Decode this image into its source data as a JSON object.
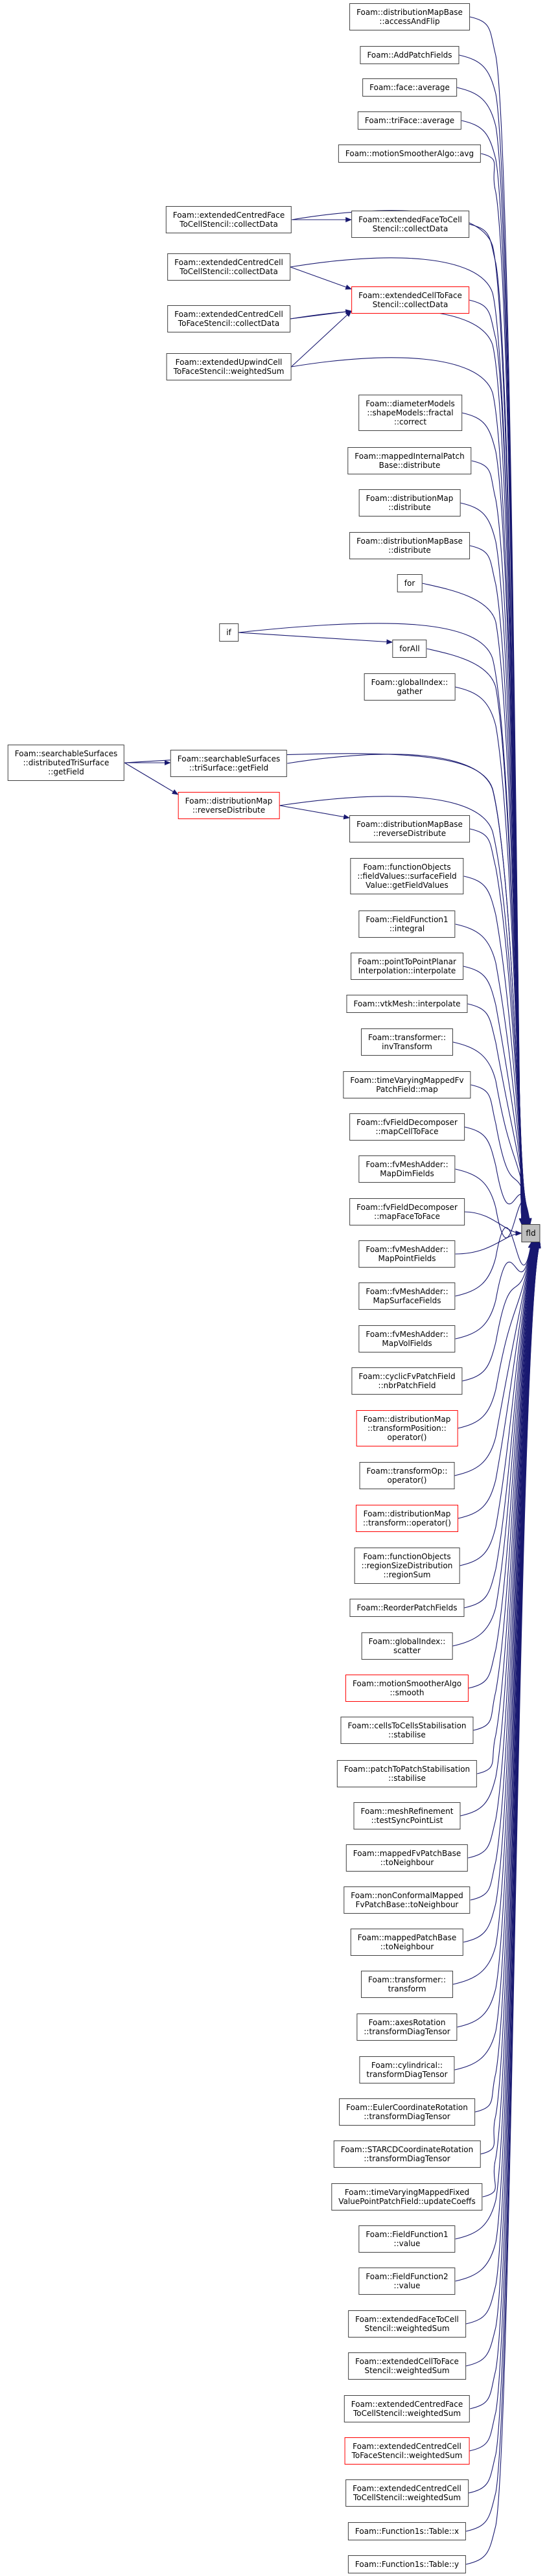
{
  "colors": {
    "edge": "#191970",
    "node_border": "#404040",
    "highlight_border": "#ff0000",
    "root_fill": "#bfbfbf"
  },
  "root": "fld",
  "nodes": [
    {
      "id": "accessAndFlip",
      "lines": [
        "Foam::distributionMapBase",
        "::accessAndFlip"
      ]
    },
    {
      "id": "AddPatchFields",
      "lines": [
        "Foam::AddPatchFields"
      ]
    },
    {
      "id": "faceAvg",
      "lines": [
        "Foam::face::average"
      ]
    },
    {
      "id": "triFaceAvg",
      "lines": [
        "Foam::triFace::average"
      ]
    },
    {
      "id": "avg",
      "lines": [
        "Foam::motionSmootherAlgo::avg"
      ]
    },
    {
      "id": "cFaceToCellCol",
      "lines": [
        "Foam::extendedCentredFace",
        "ToCellStencil::collectData"
      ]
    },
    {
      "id": "eFaceToCellCol",
      "lines": [
        "Foam::extendedFaceToCell",
        "Stencil::collectData"
      ]
    },
    {
      "id": "cCellToCellCol",
      "lines": [
        "Foam::extendedCentredCell",
        "ToCellStencil::collectData"
      ]
    },
    {
      "id": "eCellToFaceCol",
      "lines": [
        "Foam::extendedCellToFace",
        "Stencil::collectData"
      ],
      "highlight": true
    },
    {
      "id": "cCellToFaceCol",
      "lines": [
        "Foam::extendedCentredCell",
        "ToFaceStencil::collectData"
      ]
    },
    {
      "id": "upwind",
      "lines": [
        "Foam::extendedUpwindCell",
        "ToFaceStencil::weightedSum"
      ]
    },
    {
      "id": "diameter",
      "lines": [
        "Foam::diameterModels",
        "::shapeModels::fractal",
        "::correct"
      ]
    },
    {
      "id": "mappedInternal",
      "lines": [
        "Foam::mappedInternalPatch",
        "Base::distribute"
      ]
    },
    {
      "id": "dmDistribute",
      "lines": [
        "Foam::distributionMap",
        "::distribute"
      ]
    },
    {
      "id": "dmbDistribute",
      "lines": [
        "Foam::distributionMapBase",
        "::distribute"
      ]
    },
    {
      "id": "for",
      "lines": [
        "for"
      ]
    },
    {
      "id": "if",
      "lines": [
        "if"
      ]
    },
    {
      "id": "forAll",
      "lines": [
        "forAll"
      ]
    },
    {
      "id": "gather",
      "lines": [
        "Foam::globalIndex::",
        "gather"
      ]
    },
    {
      "id": "distTriGetField",
      "lines": [
        "Foam::searchableSurfaces",
        "::distributedTriSurface",
        "::getField"
      ]
    },
    {
      "id": "triGetField",
      "lines": [
        "Foam::searchableSurfaces",
        "::triSurface::getField"
      ]
    },
    {
      "id": "dmReverse",
      "lines": [
        "Foam::distributionMap",
        "::reverseDistribute"
      ],
      "highlight": true
    },
    {
      "id": "dmbReverse",
      "lines": [
        "Foam::distributionMapBase",
        "::reverseDistribute"
      ]
    },
    {
      "id": "surfaceFieldValue",
      "lines": [
        "Foam::functionObjects",
        "::fieldValues::surfaceField",
        "Value::getFieldValues"
      ]
    },
    {
      "id": "integral",
      "lines": [
        "Foam::FieldFunction1",
        "::integral"
      ]
    },
    {
      "id": "pointToPoint",
      "lines": [
        "Foam::pointToPointPlanar",
        "Interpolation::interpolate"
      ]
    },
    {
      "id": "vtkMesh",
      "lines": [
        "Foam::vtkMesh::interpolate"
      ]
    },
    {
      "id": "invTransform",
      "lines": [
        "Foam::transformer::",
        "invTransform"
      ]
    },
    {
      "id": "timeVaryingFv",
      "lines": [
        "Foam::timeVaryingMappedFv",
        "PatchField::map"
      ]
    },
    {
      "id": "mapCellToFace",
      "lines": [
        "Foam::fvFieldDecomposer",
        "::mapCellToFace"
      ]
    },
    {
      "id": "MapDim",
      "lines": [
        "Foam::fvMeshAdder::",
        "MapDimFields"
      ]
    },
    {
      "id": "mapFaceToFace",
      "lines": [
        "Foam::fvFieldDecomposer",
        "::mapFaceToFace"
      ]
    },
    {
      "id": "fld",
      "lines": [
        "fld"
      ],
      "root": true
    },
    {
      "id": "MapPoint",
      "lines": [
        "Foam::fvMeshAdder::",
        "MapPointFields"
      ]
    },
    {
      "id": "MapSurface",
      "lines": [
        "Foam::fvMeshAdder::",
        "MapSurfaceFields"
      ]
    },
    {
      "id": "MapVol",
      "lines": [
        "Foam::fvMeshAdder::",
        "MapVolFields"
      ]
    },
    {
      "id": "nbrPatch",
      "lines": [
        "Foam::cyclicFvPatchField",
        "::nbrPatchField"
      ]
    },
    {
      "id": "transformPosition",
      "lines": [
        "Foam::distributionMap",
        "::transformPosition::",
        "operator()"
      ],
      "highlight": true
    },
    {
      "id": "transformOp",
      "lines": [
        "Foam::transformOp::",
        "operator()"
      ]
    },
    {
      "id": "transformOperator",
      "lines": [
        "Foam::distributionMap",
        "::transform::operator()"
      ],
      "highlight": true
    },
    {
      "id": "regionSum",
      "lines": [
        "Foam::functionObjects",
        "::regionSizeDistribution",
        "::regionSum"
      ]
    },
    {
      "id": "Reorder",
      "lines": [
        "Foam::ReorderPatchFields"
      ]
    },
    {
      "id": "scatter",
      "lines": [
        "Foam::globalIndex::",
        "scatter"
      ]
    },
    {
      "id": "smooth",
      "lines": [
        "Foam::motionSmootherAlgo",
        "::smooth"
      ],
      "highlight": true
    },
    {
      "id": "cellsToCells",
      "lines": [
        "Foam::cellsToCellsStabilisation",
        "::stabilise"
      ]
    },
    {
      "id": "patchToPatch",
      "lines": [
        "Foam::patchToPatchStabilisation",
        "::stabilise"
      ]
    },
    {
      "id": "testSync",
      "lines": [
        "Foam::meshRefinement",
        "::testSyncPointList"
      ]
    },
    {
      "id": "mappedFv",
      "lines": [
        "Foam::mappedFvPatchBase",
        "::toNeighbour"
      ]
    },
    {
      "id": "nonConformal",
      "lines": [
        "Foam::nonConformalMapped",
        "FvPatchBase::toNeighbour"
      ]
    },
    {
      "id": "mappedPatch",
      "lines": [
        "Foam::mappedPatchBase",
        "::toNeighbour"
      ]
    },
    {
      "id": "transformerTransform",
      "lines": [
        "Foam::transformer::",
        "transform"
      ]
    },
    {
      "id": "axesRotation",
      "lines": [
        "Foam::axesRotation",
        "::transformDiagTensor"
      ]
    },
    {
      "id": "cylindrical",
      "lines": [
        "Foam::cylindrical::",
        "transformDiagTensor"
      ]
    },
    {
      "id": "Euler",
      "lines": [
        "Foam::EulerCoordinateRotation",
        "::transformDiagTensor"
      ]
    },
    {
      "id": "STARCD",
      "lines": [
        "Foam::STARCDCoordinateRotation",
        "::transformDiagTensor"
      ]
    },
    {
      "id": "timeVaryingFixed",
      "lines": [
        "Foam::timeVaryingMappedFixed",
        "ValuePointPatchField::updateCoeffs"
      ]
    },
    {
      "id": "FF1value",
      "lines": [
        "Foam::FieldFunction1",
        "::value"
      ]
    },
    {
      "id": "FF2value",
      "lines": [
        "Foam::FieldFunction2",
        "::value"
      ]
    },
    {
      "id": "FaceToCellWs",
      "lines": [
        "Foam::extendedFaceToCell",
        "Stencil::weightedSum"
      ]
    },
    {
      "id": "CellToFaceWs",
      "lines": [
        "Foam::extendedCellToFace",
        "Stencil::weightedSum"
      ]
    },
    {
      "id": "CentredFaceWs",
      "lines": [
        "Foam::extendedCentredFace",
        "ToCellStencil::weightedSum"
      ]
    },
    {
      "id": "CentredCellToFaceWs",
      "lines": [
        "Foam::extendedCentredCell",
        "ToFaceStencil::weightedSum"
      ],
      "highlight": true
    },
    {
      "id": "CentredCellToCellWs",
      "lines": [
        "Foam::extendedCentredCell",
        "ToCellStencil::weightedSum"
      ]
    },
    {
      "id": "TableX",
      "lines": [
        "Foam::Function1s::Table::x"
      ]
    },
    {
      "id": "TableY",
      "lines": [
        "Foam::Function1s::Table::y"
      ]
    }
  ],
  "edges": [
    [
      "cFaceToCellCol",
      "eFaceToCellCol"
    ],
    [
      "cCellToCellCol",
      "eCellToFaceCol"
    ],
    [
      "cCellToFaceCol",
      "eCellToFaceCol"
    ],
    [
      "upwind",
      "eCellToFaceCol"
    ],
    [
      "if",
      "forAll"
    ],
    [
      "distTriGetField",
      "triGetField"
    ],
    [
      "distTriGetField",
      "dmReverse"
    ],
    [
      "dmReverse",
      "dmbReverse"
    ]
  ],
  "fld_callers_extra": [
    "cFaceToCellCol",
    "cCellToCellCol",
    "cCellToFaceCol",
    "upwind",
    "if",
    "distTriGetField",
    "triGetField",
    "dmReverse"
  ]
}
